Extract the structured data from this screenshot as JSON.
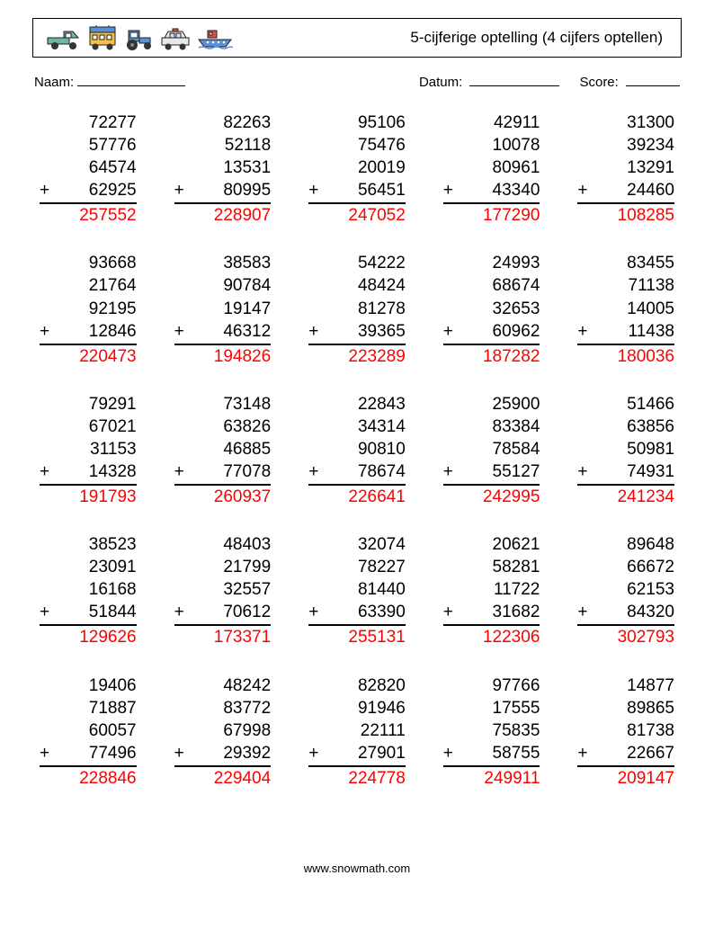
{
  "header": {
    "title": "5-cijferige optelling (4 cijfers optellen)",
    "icon_colors": {
      "car_body": "#6fb6a6",
      "bus_body": "#f7c04a",
      "bus_top": "#5b8fd6",
      "tractor_body": "#5b8fd6",
      "police_body": "#e8e8e8",
      "police_light": "#e74c3c",
      "boat_body": "#5b8fd6",
      "boat_cabin": "#e74c3c",
      "wheel": "#333333",
      "outline": "#222222"
    }
  },
  "meta": {
    "name_label": "Naam:",
    "date_label": "Datum:",
    "score_label": "Score:",
    "name_blank_width": 120,
    "date_blank_width": 100,
    "score_blank_width": 60
  },
  "style": {
    "operator": "+",
    "answer_color": "#ff0000",
    "text_color": "#000000",
    "fontsize": 19
  },
  "problems": [
    {
      "addends": [
        "72277",
        "57776",
        "64574",
        "62925"
      ],
      "answer": "257552"
    },
    {
      "addends": [
        "82263",
        "52118",
        "13531",
        "80995"
      ],
      "answer": "228907"
    },
    {
      "addends": [
        "95106",
        "75476",
        "20019",
        "56451"
      ],
      "answer": "247052"
    },
    {
      "addends": [
        "42911",
        "10078",
        "80961",
        "43340"
      ],
      "answer": "177290"
    },
    {
      "addends": [
        "31300",
        "39234",
        "13291",
        "24460"
      ],
      "answer": "108285"
    },
    {
      "addends": [
        "93668",
        "21764",
        "92195",
        "12846"
      ],
      "answer": "220473"
    },
    {
      "addends": [
        "38583",
        "90784",
        "19147",
        "46312"
      ],
      "answer": "194826"
    },
    {
      "addends": [
        "54222",
        "48424",
        "81278",
        "39365"
      ],
      "answer": "223289"
    },
    {
      "addends": [
        "24993",
        "68674",
        "32653",
        "60962"
      ],
      "answer": "187282"
    },
    {
      "addends": [
        "83455",
        "71138",
        "14005",
        "11438"
      ],
      "answer": "180036"
    },
    {
      "addends": [
        "79291",
        "67021",
        "31153",
        "14328"
      ],
      "answer": "191793"
    },
    {
      "addends": [
        "73148",
        "63826",
        "46885",
        "77078"
      ],
      "answer": "260937"
    },
    {
      "addends": [
        "22843",
        "34314",
        "90810",
        "78674"
      ],
      "answer": "226641"
    },
    {
      "addends": [
        "25900",
        "83384",
        "78584",
        "55127"
      ],
      "answer": "242995"
    },
    {
      "addends": [
        "51466",
        "63856",
        "50981",
        "74931"
      ],
      "answer": "241234"
    },
    {
      "addends": [
        "38523",
        "23091",
        "16168",
        "51844"
      ],
      "answer": "129626"
    },
    {
      "addends": [
        "48403",
        "21799",
        "32557",
        "70612"
      ],
      "answer": "173371"
    },
    {
      "addends": [
        "32074",
        "78227",
        "81440",
        "63390"
      ],
      "answer": "255131"
    },
    {
      "addends": [
        "20621",
        "58281",
        "11722",
        "31682"
      ],
      "answer": "122306"
    },
    {
      "addends": [
        "89648",
        "66672",
        "62153",
        "84320"
      ],
      "answer": "302793"
    },
    {
      "addends": [
        "19406",
        "71887",
        "60057",
        "77496"
      ],
      "answer": "228846"
    },
    {
      "addends": [
        "48242",
        "83772",
        "67998",
        "29392"
      ],
      "answer": "229404"
    },
    {
      "addends": [
        "82820",
        "91946",
        "22111",
        "27901"
      ],
      "answer": "224778"
    },
    {
      "addends": [
        "97766",
        "17555",
        "75835",
        "58755"
      ],
      "answer": "249911"
    },
    {
      "addends": [
        "14877",
        "89865",
        "81738",
        "22667"
      ],
      "answer": "209147"
    }
  ],
  "footer": {
    "text": "www.snowmath.com"
  }
}
